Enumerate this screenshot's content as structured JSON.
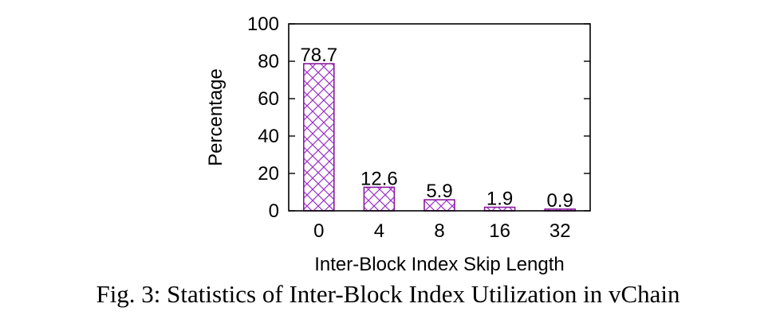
{
  "caption": "Fig. 3: Statistics of Inter-Block Index Utilization in vChain",
  "colors": {
    "bar_stroke": "#8b1a9e",
    "hatch": "#9b30c8",
    "axis": "#000000"
  },
  "chart_data": {
    "type": "bar",
    "categories": [
      "0",
      "4",
      "8",
      "16",
      "32"
    ],
    "values": [
      78.7,
      12.6,
      5.9,
      1.9,
      0.9
    ],
    "data_labels": [
      "78.7",
      "12.6",
      "5.9",
      "1.9",
      "0.9"
    ],
    "title": "",
    "xlabel": "Inter-Block Index Skip Length",
    "ylabel": "Percentage",
    "ylim": [
      0,
      100
    ],
    "yticks": [
      0,
      20,
      40,
      60,
      80,
      100
    ],
    "grid": false,
    "fill_pattern": "crosshatch"
  }
}
